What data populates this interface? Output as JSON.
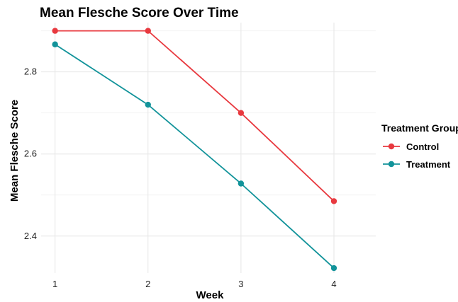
{
  "chart_data": {
    "type": "line",
    "title": "Mean Flesche Score Over Time",
    "xlabel": "Week",
    "ylabel": "Mean Flesche Score",
    "x": [
      1,
      2,
      3,
      4
    ],
    "x_tick_labels": [
      "1",
      "2",
      "3",
      "4"
    ],
    "y_ticks": [
      2.4,
      2.6,
      2.8
    ],
    "y_tick_labels": [
      "2.4",
      "2.6",
      "2.8"
    ],
    "xlim": [
      0.85,
      4.45
    ],
    "ylim": [
      2.31,
      2.92
    ],
    "grid": true,
    "legend": {
      "title": "Treatment Group",
      "placement": "right"
    },
    "series": [
      {
        "name": "Control",
        "color": "#e8393f",
        "values": [
          2.9,
          2.9,
          2.7,
          2.485
        ]
      },
      {
        "name": "Treatment",
        "color": "#12939a",
        "values": [
          2.867,
          2.72,
          2.528,
          2.322
        ]
      }
    ]
  }
}
